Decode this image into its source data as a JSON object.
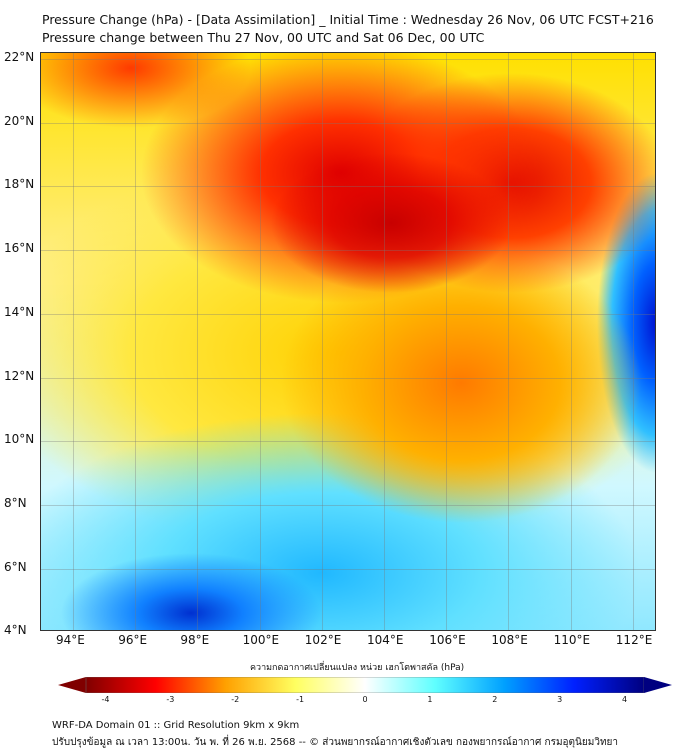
{
  "title_line1": "Pressure Change (hPa) - [Data Assimilation] _ Initial Time : Wednesday 26 Nov, 06 UTC FCST+216",
  "title_line2": "Pressure change between Thu 27 Nov, 00 UTC and Sat 06 Dec, 00 UTC",
  "lat_labels": [
    "22°N",
    "20°N",
    "18°N",
    "16°N",
    "14°N",
    "12°N",
    "10°N",
    "8°N",
    "6°N",
    "4°N"
  ],
  "lon_labels": [
    "94°E",
    "96°E",
    "98°E",
    "100°E",
    "102°E",
    "104°E",
    "106°E",
    "108°E",
    "110°E",
    "112°E"
  ],
  "colorbar": {
    "label": "ความกดอากาศเปลี่ยนแปลง หน่วย เฮกโตพาสคัล (hPa)",
    "ticks": [
      "-4",
      "-3",
      "-2",
      "-1",
      "0",
      "1",
      "2",
      "3",
      "4"
    ],
    "min": -4,
    "max": 4,
    "colors": [
      "#800000",
      "#ff0000",
      "#ffa000",
      "#ffff60",
      "#ffffff",
      "#60ffff",
      "#00a0ff",
      "#0020ff",
      "#000080"
    ]
  },
  "footer_line1": "WRF-DA Domain 01 :: Grid Resolution 9km x 9km",
  "footer_line2": "ปรับปรุงข้อมูล ณ เวลา 13:00น. วัน พ. ที่ 26 พ.ย. 2568 -- © ส่วนพยากรณ์อากาศเชิงตัวเลข กองพยากรณ์อากาศ กรมอุตุนิยมวิทยา"
}
